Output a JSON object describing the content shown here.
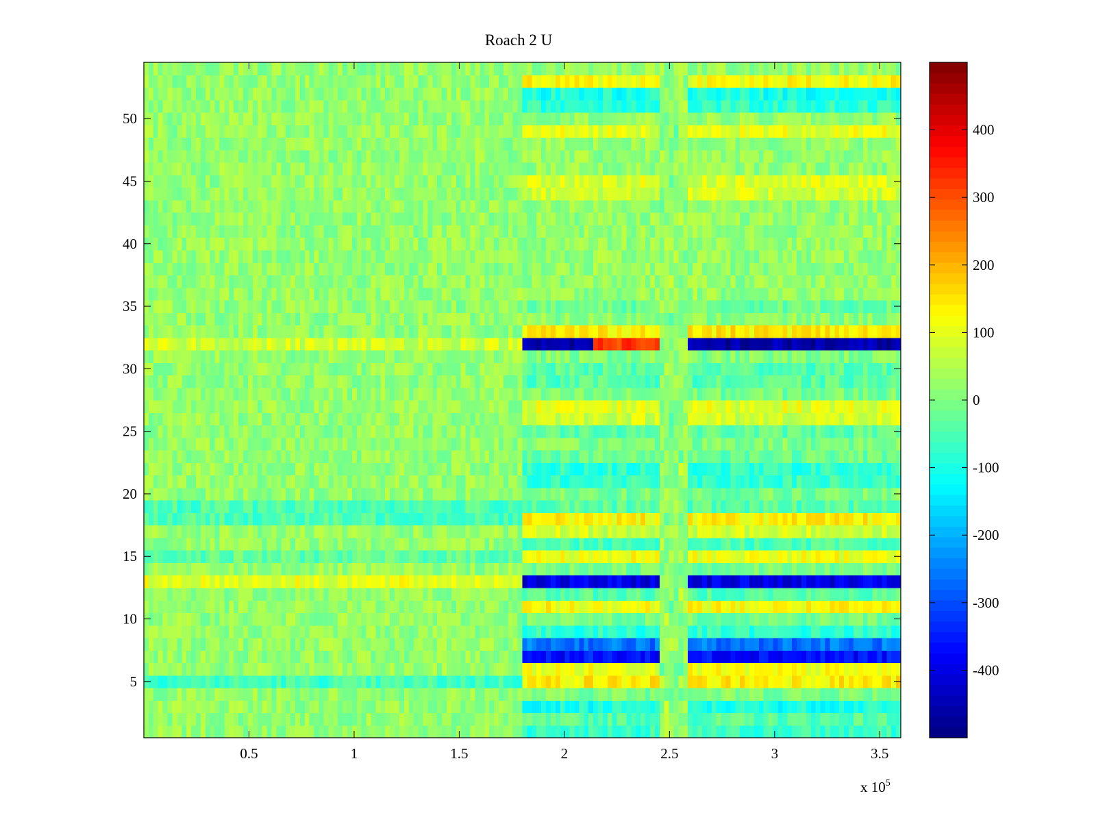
{
  "chart_data": {
    "type": "heatmap",
    "title": "Roach 2 U",
    "xlabel": "",
    "ylabel": "",
    "x_exponent_label": {
      "base": "x 10",
      "exponent": "5"
    },
    "xlim": [
      0,
      360000
    ],
    "ylim": [
      0.5,
      54.5
    ],
    "x_ticks": [
      50000,
      100000,
      150000,
      200000,
      250000,
      300000,
      350000
    ],
    "x_tick_labels": [
      "0.5",
      "1",
      "1.5",
      "2",
      "2.5",
      "3",
      "3.5"
    ],
    "y_ticks": [
      5,
      10,
      15,
      20,
      25,
      30,
      35,
      40,
      45,
      50
    ],
    "y_tick_labels": [
      "5",
      "10",
      "15",
      "20",
      "25",
      "30",
      "35",
      "40",
      "45",
      "50"
    ],
    "rows": 54,
    "colormap": "jet",
    "colorbar": {
      "range": [
        -500,
        500
      ],
      "ticks": [
        400,
        300,
        200,
        100,
        0,
        -100,
        -200,
        -300,
        -400
      ],
      "tick_labels": [
        "400",
        "300",
        "200",
        "100",
        "0",
        "-100",
        "-200",
        "-300",
        "-400"
      ]
    },
    "regime_change_x": 180000,
    "gap_x_range": [
      245000,
      258000
    ],
    "row_offsets_first_segment": {
      "5": -80,
      "13": 80,
      "18": -70,
      "19": -70,
      "15": -50,
      "32": 60
    },
    "row_offsets_second_segment": {
      "1": -90,
      "2": -60,
      "3": -120,
      "4": -20,
      "5": 120,
      "6": 90,
      "7": -380,
      "8": -280,
      "9": -100,
      "10": -30,
      "11": 100,
      "12": -60,
      "13": -420,
      "14": -30,
      "15": 90,
      "16": -70,
      "17": 60,
      "18": 110,
      "19": -60,
      "20": -30,
      "21": -90,
      "22": -100,
      "23": -40,
      "24": -20,
      "25": -50,
      "26": 60,
      "27": 80,
      "28": -30,
      "29": -60,
      "30": -60,
      "31": -20,
      "32": -480,
      "33": 120,
      "34": -10,
      "35": -40,
      "44": 60,
      "45": 70,
      "49": 80,
      "51": -100,
      "52": -120,
      "53": 100
    },
    "peak_segment": {
      "row": 32,
      "x_range": [
        212000,
        248000
      ],
      "value": 320
    },
    "baseline_value": 20
  }
}
